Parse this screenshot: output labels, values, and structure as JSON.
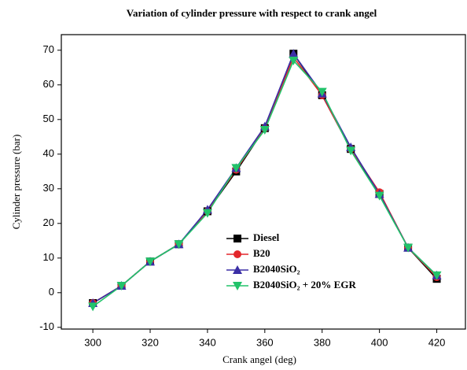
{
  "chart_data": {
    "type": "line",
    "title": "Variation of cylinder pressure with respect to crank angel",
    "x_label": "Crank angel (deg)",
    "y_label": "Cylinder pressure (bar)",
    "x": [
      300,
      310,
      320,
      330,
      340,
      350,
      360,
      370,
      380,
      390,
      400,
      410,
      420
    ],
    "series": [
      {
        "name": "Diesel",
        "color": "#000000",
        "marker": "square",
        "values": [
          -3,
          2,
          9,
          14,
          23.5,
          35,
          47.5,
          69,
          57,
          41.5,
          28.5,
          13,
          4
        ]
      },
      {
        "name": "B20",
        "color": "#e3262b",
        "marker": "circle",
        "values": [
          -3,
          2,
          9,
          14,
          23.5,
          35.5,
          47.5,
          68,
          57,
          41.5,
          29,
          13,
          4.5
        ]
      },
      {
        "name": "B2040SiO₂",
        "color": "#3b2fa6",
        "marker": "triangle-up",
        "values": [
          -3,
          2,
          9,
          14,
          24,
          36,
          48,
          69,
          57.5,
          42,
          28.5,
          13,
          5
        ]
      },
      {
        "name": "B2040SiO₂ + 20% EGR",
        "color": "#22c36a",
        "marker": "triangle-down",
        "values": [
          -4,
          2,
          9,
          14,
          23,
          36,
          47,
          67,
          58,
          41,
          28,
          13,
          5
        ]
      }
    ],
    "xlim": [
      289,
      430
    ],
    "ylim": [
      -10.5,
      74.5
    ],
    "xticks": [
      300,
      320,
      340,
      360,
      380,
      400,
      420
    ],
    "yticks": [
      -10,
      0,
      10,
      20,
      30,
      40,
      50,
      60,
      70
    ],
    "grid": false,
    "legend_position": "center"
  }
}
